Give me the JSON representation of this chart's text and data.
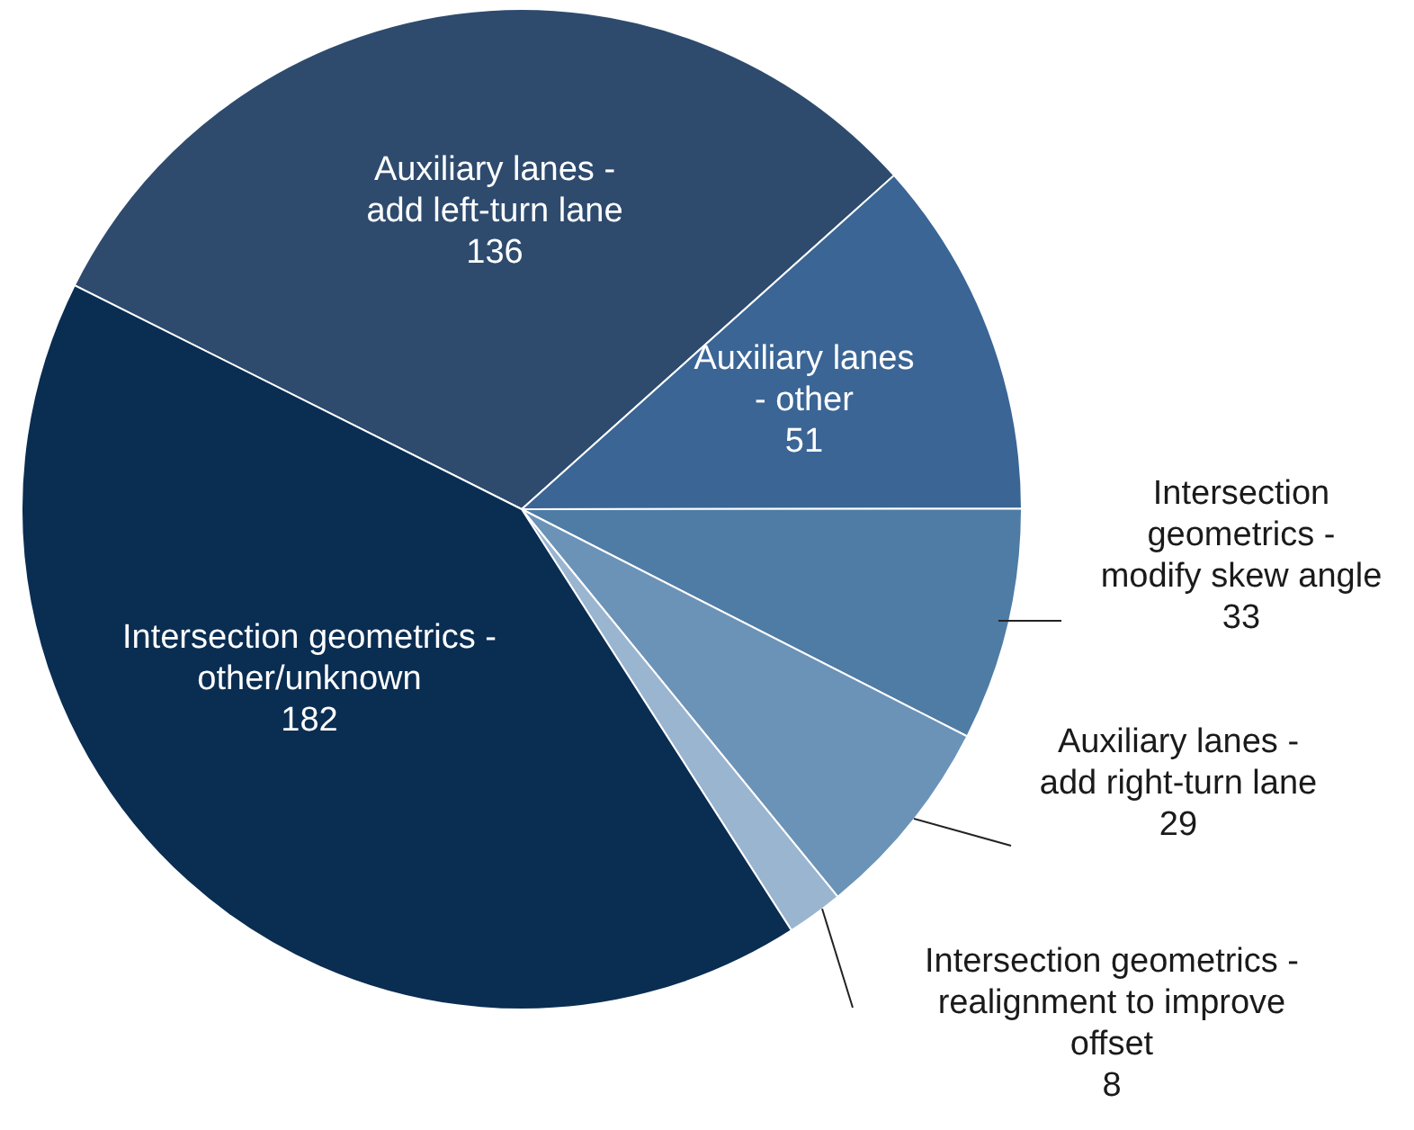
{
  "chart_data": {
    "type": "pie",
    "categories": [
      "Auxiliary lanes - add left-turn lane",
      "Auxiliary lanes - other",
      "Intersection geometrics - modify skew angle",
      "Auxiliary lanes - add right-turn lane",
      "Intersection geometrics - realignment to improve offset",
      "Intersection geometrics - other/unknown"
    ],
    "values": [
      136,
      51,
      33,
      29,
      8,
      182
    ],
    "colors": [
      "#2e4b6e",
      "#3a6595",
      "#4f7ca5",
      "#6b93b8",
      "#9ab5d0",
      "#0a2d52"
    ],
    "data_labels": true,
    "legend": false
  }
}
